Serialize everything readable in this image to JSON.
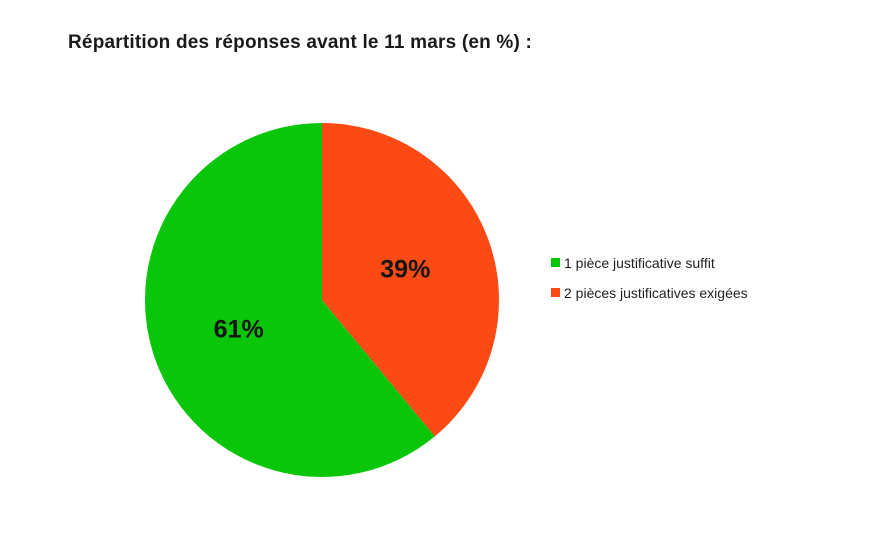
{
  "title": "Répartition des réponses avant le 11 mars (en %) :",
  "chart_data": {
    "type": "pie",
    "title": "Répartition des réponses avant le 11 mars (en %) :",
    "categories": [
      "1 pièce justificative suffit",
      "2 pièces justificatives exigées"
    ],
    "values": [
      61,
      39
    ],
    "unit": "%",
    "data_labels": [
      "61%",
      "39%"
    ],
    "colors": [
      "#0ac60a",
      "#fc4a14"
    ],
    "start_angle": "12 o'clock",
    "layout_note": "green 61% slice fills the left side sweeping counter-clockwise from top; orange 39% slice fills the upper right",
    "legend_position": "right",
    "background": "#ffffff",
    "data_label_color": "#141414",
    "title_color": "#1a1a1a"
  }
}
